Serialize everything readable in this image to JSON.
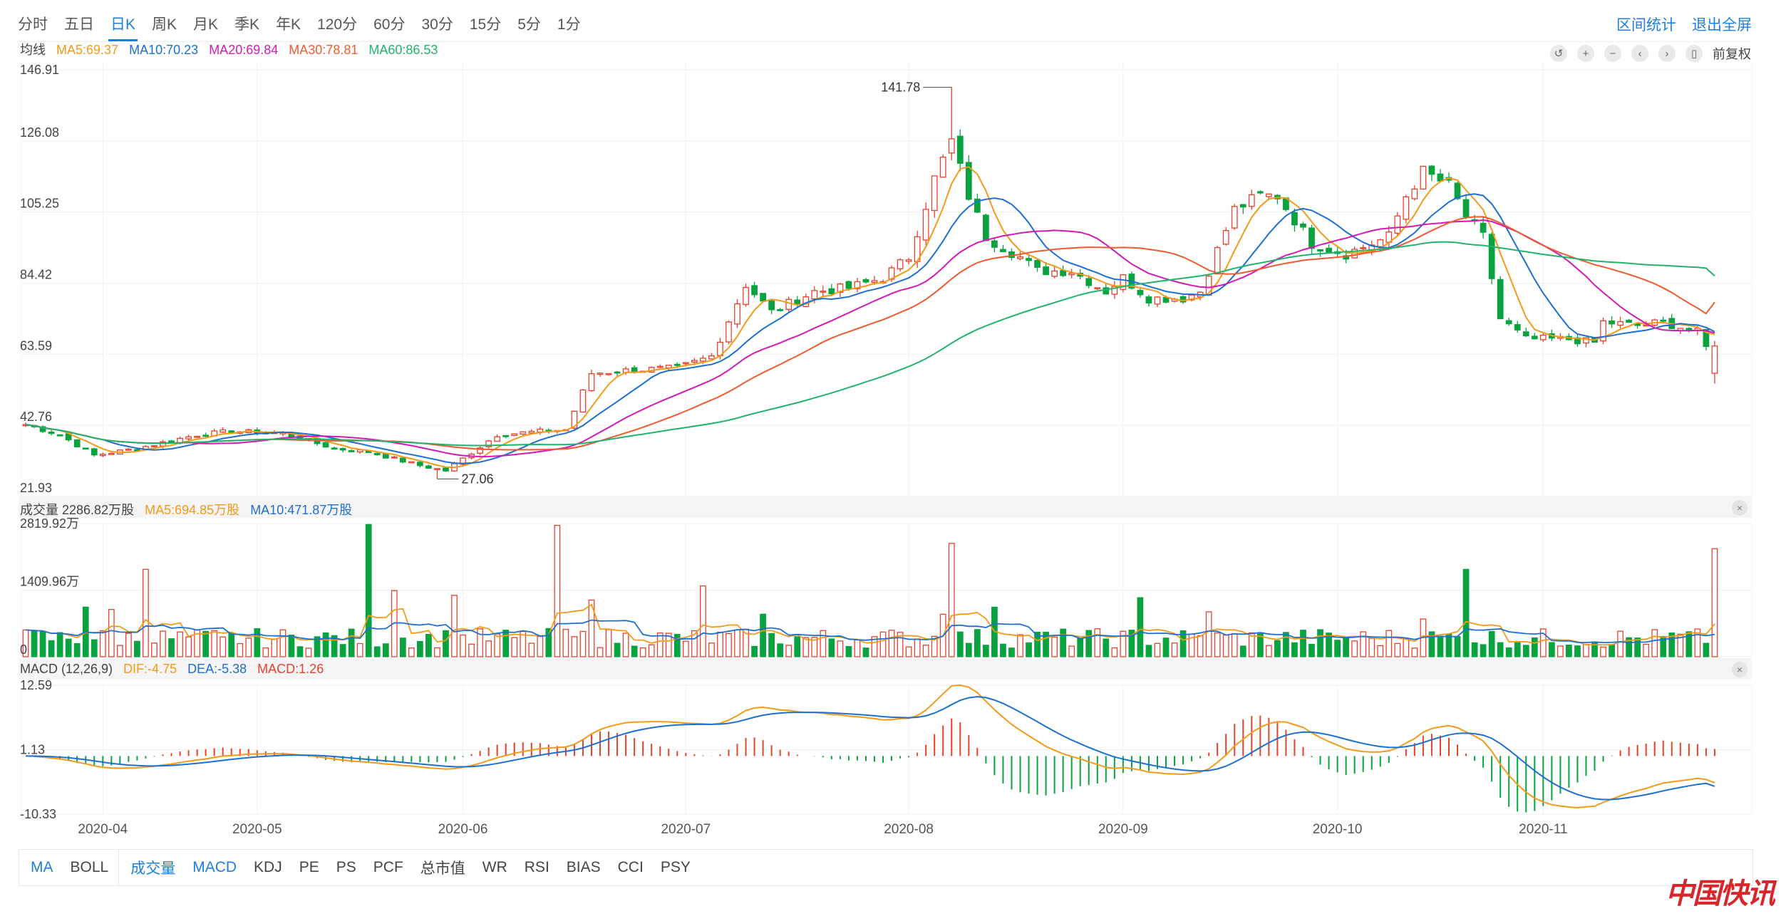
{
  "tabs": [
    {
      "label": "分时",
      "active": false
    },
    {
      "label": "五日",
      "active": false
    },
    {
      "label": "日K",
      "active": true
    },
    {
      "label": "周K",
      "active": false
    },
    {
      "label": "月K",
      "active": false
    },
    {
      "label": "季K",
      "active": false
    },
    {
      "label": "年K",
      "active": false
    },
    {
      "label": "120分",
      "active": false
    },
    {
      "label": "60分",
      "active": false
    },
    {
      "label": "30分",
      "active": false
    },
    {
      "label": "15分",
      "active": false
    },
    {
      "label": "5分",
      "active": false
    },
    {
      "label": "1分",
      "active": false
    }
  ],
  "right_links": {
    "range_stats": "区间统计",
    "exit_fullscreen": "退出全屏"
  },
  "colors": {
    "up": "#e8412c",
    "down": "#08a33f",
    "ma5": "#f39a1a",
    "ma10": "#1d6fd0",
    "ma20": "#d21ab5",
    "ma30": "#ef5b30",
    "ma60": "#21b36e",
    "accent": "#1e7fe0"
  },
  "price_legend": {
    "title": "均线",
    "ma5": "MA5:69.37",
    "ma10": "MA10:70.23",
    "ma20": "MA20:69.84",
    "ma30": "MA30:78.81",
    "ma60": "MA60:86.53"
  },
  "controls": {
    "icons": [
      "undo-icon",
      "zoom-in-icon",
      "zoom-out-icon",
      "left-icon",
      "right-icon",
      "candle-icon"
    ],
    "adjust_label": "前复权"
  },
  "volume_legend": {
    "title": "成交量 2286.82万股",
    "ma5": "MA5:694.85万股",
    "ma10": "MA10:471.87万股"
  },
  "macd_legend": {
    "title": "MACD (12,26,9)",
    "dif": "DIF:-4.75",
    "dea": "DEA:-5.38",
    "macd": "MACD:1.26"
  },
  "indicators": {
    "main": [
      {
        "label": "MA",
        "on": true
      },
      {
        "label": "BOLL",
        "on": false
      }
    ],
    "sub": [
      {
        "label": "成交量",
        "on": true
      },
      {
        "label": "MACD",
        "on": true
      },
      {
        "label": "KDJ",
        "on": false
      },
      {
        "label": "PE",
        "on": false
      },
      {
        "label": "PS",
        "on": false
      },
      {
        "label": "PCF",
        "on": false
      },
      {
        "label": "总市值",
        "on": false
      },
      {
        "label": "WR",
        "on": false
      },
      {
        "label": "RSI",
        "on": false
      },
      {
        "label": "BIAS",
        "on": false
      },
      {
        "label": "CCI",
        "on": false
      },
      {
        "label": "PSY",
        "on": false
      }
    ]
  },
  "chart_data": [
    {
      "type": "candlestick",
      "title": "",
      "y_ticks": [
        "146.91",
        "126.08",
        "105.25",
        "84.42",
        "63.59",
        "42.76",
        "21.93"
      ],
      "ylim": [
        21.93,
        146.91
      ],
      "x_ticks": [
        {
          "label": "2020-04",
          "index": 9
        },
        {
          "label": "2020-05",
          "index": 27
        },
        {
          "label": "2020-06",
          "index": 51
        },
        {
          "label": "2020-07",
          "index": 77
        },
        {
          "label": "2020-08",
          "index": 103
        },
        {
          "label": "2020-09",
          "index": 128
        },
        {
          "label": "2020-10",
          "index": 153
        },
        {
          "label": "2020-11",
          "index": 177
        }
      ],
      "annotations": [
        {
          "label": "141.78",
          "index": 108,
          "value": 141.78
        },
        {
          "label": "27.06",
          "index": 48,
          "value": 27.06
        }
      ],
      "pivots": [
        [
          0,
          43.0
        ],
        [
          4,
          40.0
        ],
        [
          8,
          34.0
        ],
        [
          13,
          36.0
        ],
        [
          20,
          40.0
        ],
        [
          24,
          41.0
        ],
        [
          30,
          40.5
        ],
        [
          36,
          36.0
        ],
        [
          40,
          35.0
        ],
        [
          46,
          31.0
        ],
        [
          49,
          29.5
        ],
        [
          55,
          40.0
        ],
        [
          60,
          41.0
        ],
        [
          63,
          41.5
        ],
        [
          66,
          58.0
        ],
        [
          71,
          59.0
        ],
        [
          76,
          59.5
        ],
        [
          80,
          63.0
        ],
        [
          84,
          84.0
        ],
        [
          87,
          76.0
        ],
        [
          92,
          82.0
        ],
        [
          96,
          83.0
        ],
        [
          100,
          86.0
        ],
        [
          103,
          92.0
        ],
        [
          106,
          115.0
        ],
        [
          108,
          126.0
        ],
        [
          110,
          110.0
        ],
        [
          112,
          98.0
        ],
        [
          116,
          92.0
        ],
        [
          118,
          88.0
        ],
        [
          122,
          88.0
        ],
        [
          126,
          82.0
        ],
        [
          128,
          86.0
        ],
        [
          131,
          80.0
        ],
        [
          135,
          80.0
        ],
        [
          137,
          82.0
        ],
        [
          141,
          106.0
        ],
        [
          144,
          110.0
        ],
        [
          146,
          110.0
        ],
        [
          150,
          96.0
        ],
        [
          154,
          93.0
        ],
        [
          159,
          98.0
        ],
        [
          161,
          110.0
        ],
        [
          163,
          117.0
        ],
        [
          166,
          113.0
        ],
        [
          168,
          104.0
        ],
        [
          170,
          98.0
        ],
        [
          172,
          74.0
        ],
        [
          175,
          68.0
        ],
        [
          180,
          68.0
        ],
        [
          183,
          67.0
        ],
        [
          184,
          73.0
        ],
        [
          188,
          72.0
        ],
        [
          191,
          73.0
        ],
        [
          195,
          70.0
        ],
        [
          197,
          61.0
        ]
      ],
      "ma_last": {
        "ma5": 69.37,
        "ma10": 70.23,
        "ma20": 69.84,
        "ma30": 78.81,
        "ma60": 86.53
      }
    },
    {
      "type": "bar",
      "title": "成交量",
      "y_ticks": [
        "2819.92万",
        "1409.96万",
        "0"
      ],
      "ylim": [
        0,
        2819.92
      ],
      "unit": "万股",
      "last_volume": 2286.82,
      "spikes": [
        [
          7,
          1050
        ],
        [
          10,
          1000
        ],
        [
          14,
          1850
        ],
        [
          23,
          420
        ],
        [
          40,
          2800
        ],
        [
          43,
          1400
        ],
        [
          50,
          1300
        ],
        [
          62,
          2780
        ],
        [
          66,
          1200
        ],
        [
          79,
          1500
        ],
        [
          86,
          900
        ],
        [
          107,
          900
        ],
        [
          108,
          2400
        ],
        [
          113,
          1050
        ],
        [
          130,
          1250
        ],
        [
          138,
          950
        ],
        [
          163,
          800
        ],
        [
          168,
          1850
        ],
        [
          197,
          2286.82
        ]
      ],
      "ma5_last": 694.85,
      "ma10_last": 471.87
    },
    {
      "type": "macd",
      "title": "MACD (12,26,9)",
      "y_ticks": [
        "12.59",
        "1.13",
        "-10.33"
      ],
      "ylim": [
        -10.33,
        12.59
      ],
      "dif_last": -4.75,
      "dea_last": -5.38,
      "macd_last": 1.26
    }
  ],
  "watermark": "中国快讯"
}
